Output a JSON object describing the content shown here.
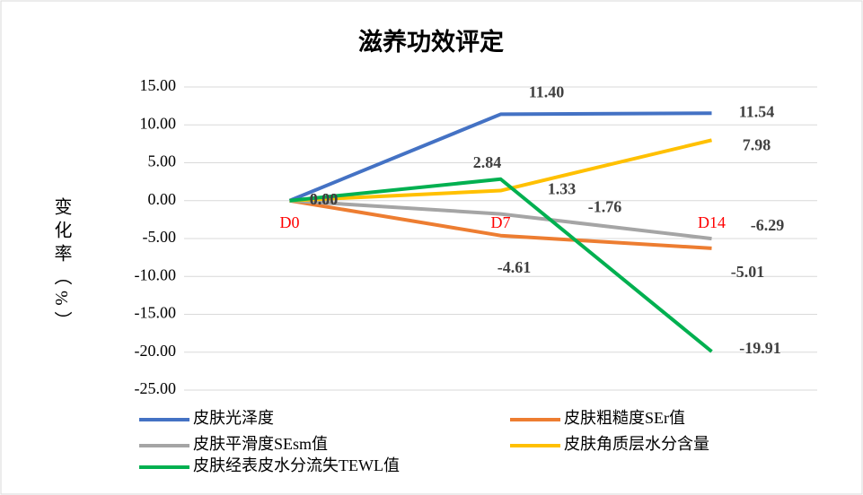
{
  "chart_data": {
    "type": "line",
    "title": "滋养功效评定",
    "y_label": "变化率（%）",
    "categories": [
      "D0",
      "D7",
      "D14"
    ],
    "series": [
      {
        "name": "皮肤光泽度",
        "color": "#4472c4",
        "values": [
          0,
          11.4,
          11.54
        ],
        "value_labels": [
          "0.00",
          "11.40",
          "11.54"
        ]
      },
      {
        "name": "皮肤粗糙度SEr值",
        "color": "#ed7d31",
        "values": [
          0,
          -4.61,
          -6.29
        ],
        "value_labels": [
          "0.00",
          "-4.61",
          "-6.29"
        ]
      },
      {
        "name": "皮肤平滑度SEsm值",
        "color": "#a5a5a5",
        "values": [
          0,
          -1.76,
          -5.01
        ],
        "value_labels": [
          "0.00",
          "-1.76",
          "-5.01"
        ]
      },
      {
        "name": "皮肤角质层水分含量",
        "color": "#ffc000",
        "values": [
          0,
          1.33,
          7.98
        ],
        "value_labels": [
          "0.00",
          "1.33",
          "7.98"
        ]
      },
      {
        "name": "皮肤经表皮水分流失TEWL值",
        "color": "#00b050",
        "values": [
          0,
          2.84,
          -19.91
        ],
        "value_labels": [
          "0.00",
          "2.84",
          "-19.91"
        ]
      }
    ],
    "ylim": [
      -25,
      15
    ],
    "yticks": [
      {
        "value": -25,
        "label": "-25.00"
      },
      {
        "value": -20,
        "label": "-20.00"
      },
      {
        "value": -15,
        "label": "-15.00"
      },
      {
        "value": -10,
        "label": "-10.00"
      },
      {
        "value": -5,
        "label": "-5.00"
      },
      {
        "value": 0,
        "label": "0.00"
      },
      {
        "value": 5,
        "label": "5.00"
      },
      {
        "value": 10,
        "label": "10.00"
      },
      {
        "value": 15,
        "label": "15.00"
      }
    ],
    "grid": true,
    "legend": "bottom",
    "category_color": "#ff0000"
  }
}
